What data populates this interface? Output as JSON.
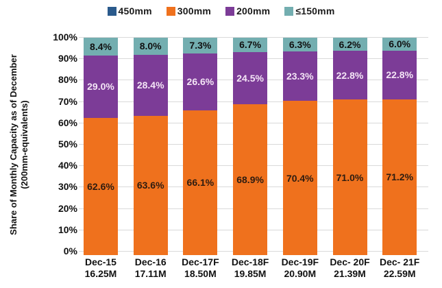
{
  "chart_data": {
    "type": "bar",
    "stacked": true,
    "ylabel_line1": "Share of Monthly Capacity as of December",
    "ylabel_line2": "(200mm-equivalents)",
    "categories": [
      "Dec-15",
      "Dec-16",
      "Dec-17F",
      "Dec-18F",
      "Dec-19F",
      "Dec- 20F",
      "Dec- 21F"
    ],
    "category_sublabels": [
      "16.25M",
      "17.11M",
      "18.50M",
      "19.85M",
      "20.90M",
      "21.39M",
      "22.59M"
    ],
    "series": [
      {
        "name": "450mm",
        "color": "#2a5a8c",
        "label_color": "#111111",
        "values": [
          0,
          0,
          0,
          0,
          0,
          0,
          0
        ]
      },
      {
        "name": "300mm",
        "color": "#ef711d",
        "label_color": "#2e1c10",
        "values": [
          62.6,
          63.6,
          66.1,
          68.9,
          70.4,
          71.0,
          71.2
        ]
      },
      {
        "name": "200mm",
        "color": "#7c3c97",
        "label_color": "#f4e5f6",
        "values": [
          29.0,
          28.4,
          26.6,
          24.5,
          23.3,
          22.8,
          22.8
        ]
      },
      {
        "name": "≤150mm",
        "color": "#73aeb0",
        "label_color": "#111111",
        "values": [
          8.4,
          8.0,
          7.3,
          6.7,
          6.3,
          6.2,
          6.0
        ]
      }
    ],
    "yaxis": {
      "min": 0,
      "max": 100,
      "grid": true,
      "ticks": [
        "0%",
        "10%",
        "20%",
        "30%",
        "40%",
        "50%",
        "60%",
        "70%",
        "80%",
        "90%",
        "100%"
      ]
    },
    "legend_position": "top",
    "grid_color": "#d9d9d9",
    "background_color": "#ffffff"
  }
}
